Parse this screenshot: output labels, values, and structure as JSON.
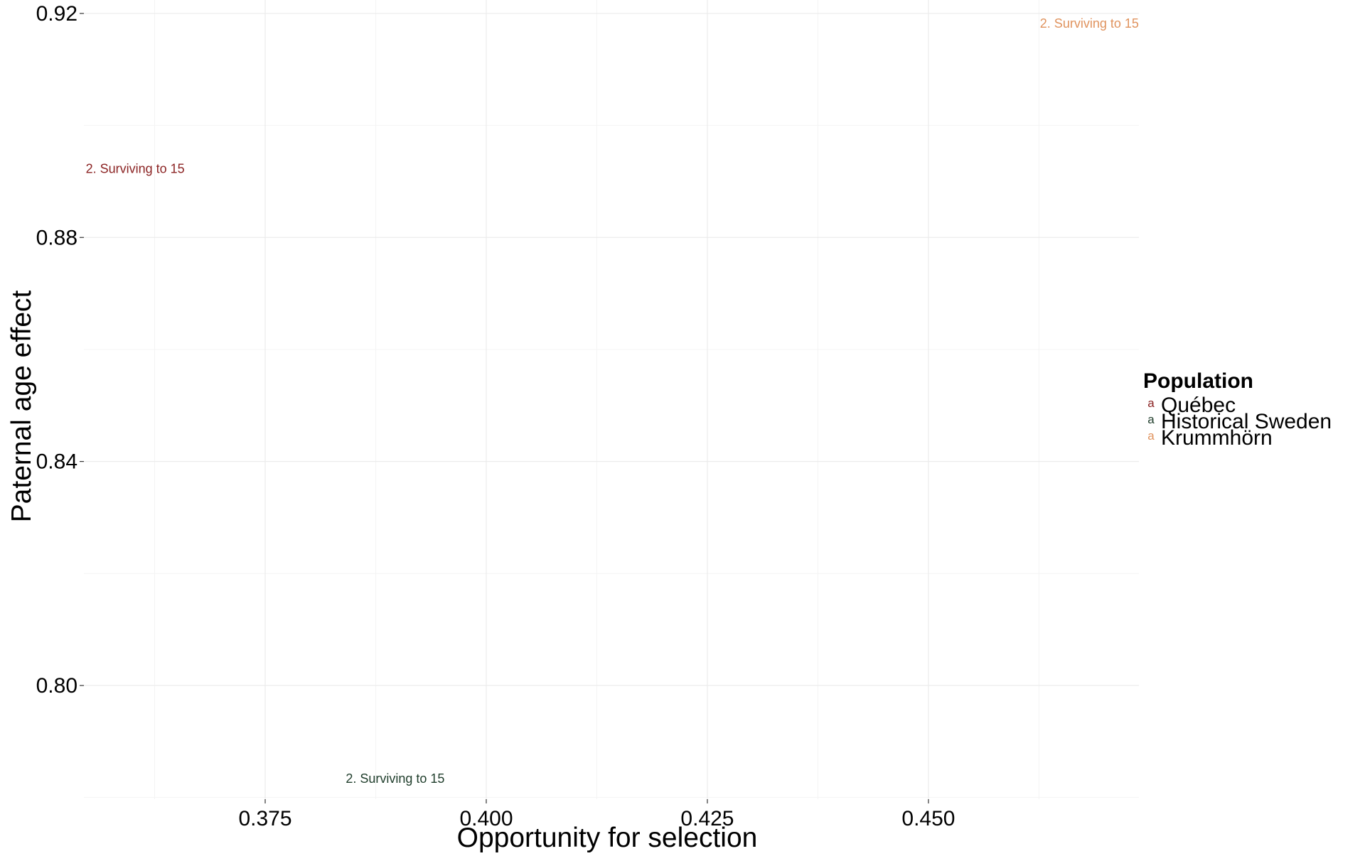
{
  "chart_data": {
    "type": "scatter",
    "title": "",
    "xlabel": "Opportunity for selection",
    "ylabel": "Paternal age effect",
    "xlim": [
      0.3545,
      0.4738
    ],
    "ylim": [
      0.7797,
      0.9224
    ],
    "x_ticks": [
      0.375,
      0.4,
      0.425,
      0.45
    ],
    "x_tick_labels": [
      "0.375",
      "0.400",
      "0.425",
      "0.450"
    ],
    "y_ticks": [
      0.8,
      0.84,
      0.88,
      0.92
    ],
    "y_tick_labels": [
      "0.80",
      "0.84",
      "0.88",
      "0.92"
    ],
    "grid": true,
    "legend": {
      "title": "Population",
      "position": "right",
      "key_glyph": "a"
    },
    "series": [
      {
        "name": "Québec",
        "color": "#8B2323",
        "points": [
          {
            "x": 0.3603,
            "y": 0.8923,
            "label": "2. Surviving to 15"
          }
        ]
      },
      {
        "name": "Historical Sweden",
        "color": "#1F3D2B",
        "points": [
          {
            "x": 0.3897,
            "y": 0.7834,
            "label": "2. Surviving to 15"
          }
        ]
      },
      {
        "name": "Krummhörn",
        "color": "#E0935E",
        "points": [
          {
            "x": 0.4682,
            "y": 0.9182,
            "label": "2. Surviving to 15"
          }
        ]
      }
    ]
  }
}
